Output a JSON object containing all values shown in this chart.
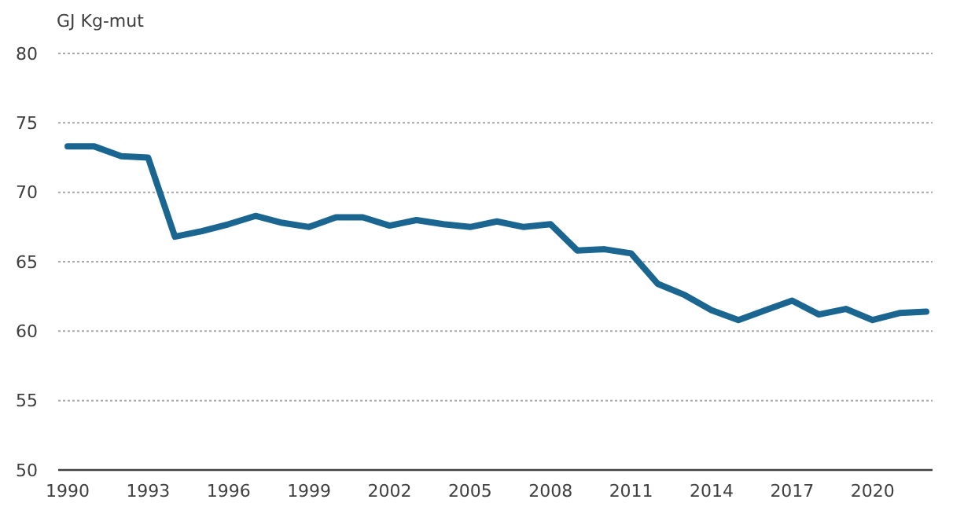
{
  "chart_data": {
    "type": "line",
    "ylabel": "GJ Kg-mut",
    "categories": [
      "1990",
      null,
      null,
      "1993",
      null,
      null,
      "1996",
      null,
      null,
      "1999",
      null,
      null,
      "2002",
      null,
      null,
      "2005",
      null,
      null,
      "2008",
      null,
      null,
      "2011",
      null,
      null,
      "2014",
      null,
      null,
      "2017",
      null,
      null,
      "2020",
      null,
      null
    ],
    "series": [
      {
        "color": "#1a6690",
        "values": [
          73.3,
          73.3,
          72.6,
          72.5,
          66.8,
          67.2,
          67.7,
          68.3,
          67.8,
          67.5,
          68.2,
          68.2,
          67.6,
          68.0,
          67.7,
          67.5,
          67.9,
          67.5,
          67.7,
          65.8,
          65.9,
          65.6,
          63.4,
          62.6,
          61.5,
          60.8,
          61.5,
          62.2,
          61.2,
          61.6,
          60.8,
          61.3,
          61.4
        ]
      }
    ],
    "ylim": [
      50,
      80
    ],
    "yticks": [
      50,
      55,
      60,
      65,
      70,
      75,
      80
    ],
    "grid": "y",
    "marker": "none",
    "line_style": "solid"
  }
}
